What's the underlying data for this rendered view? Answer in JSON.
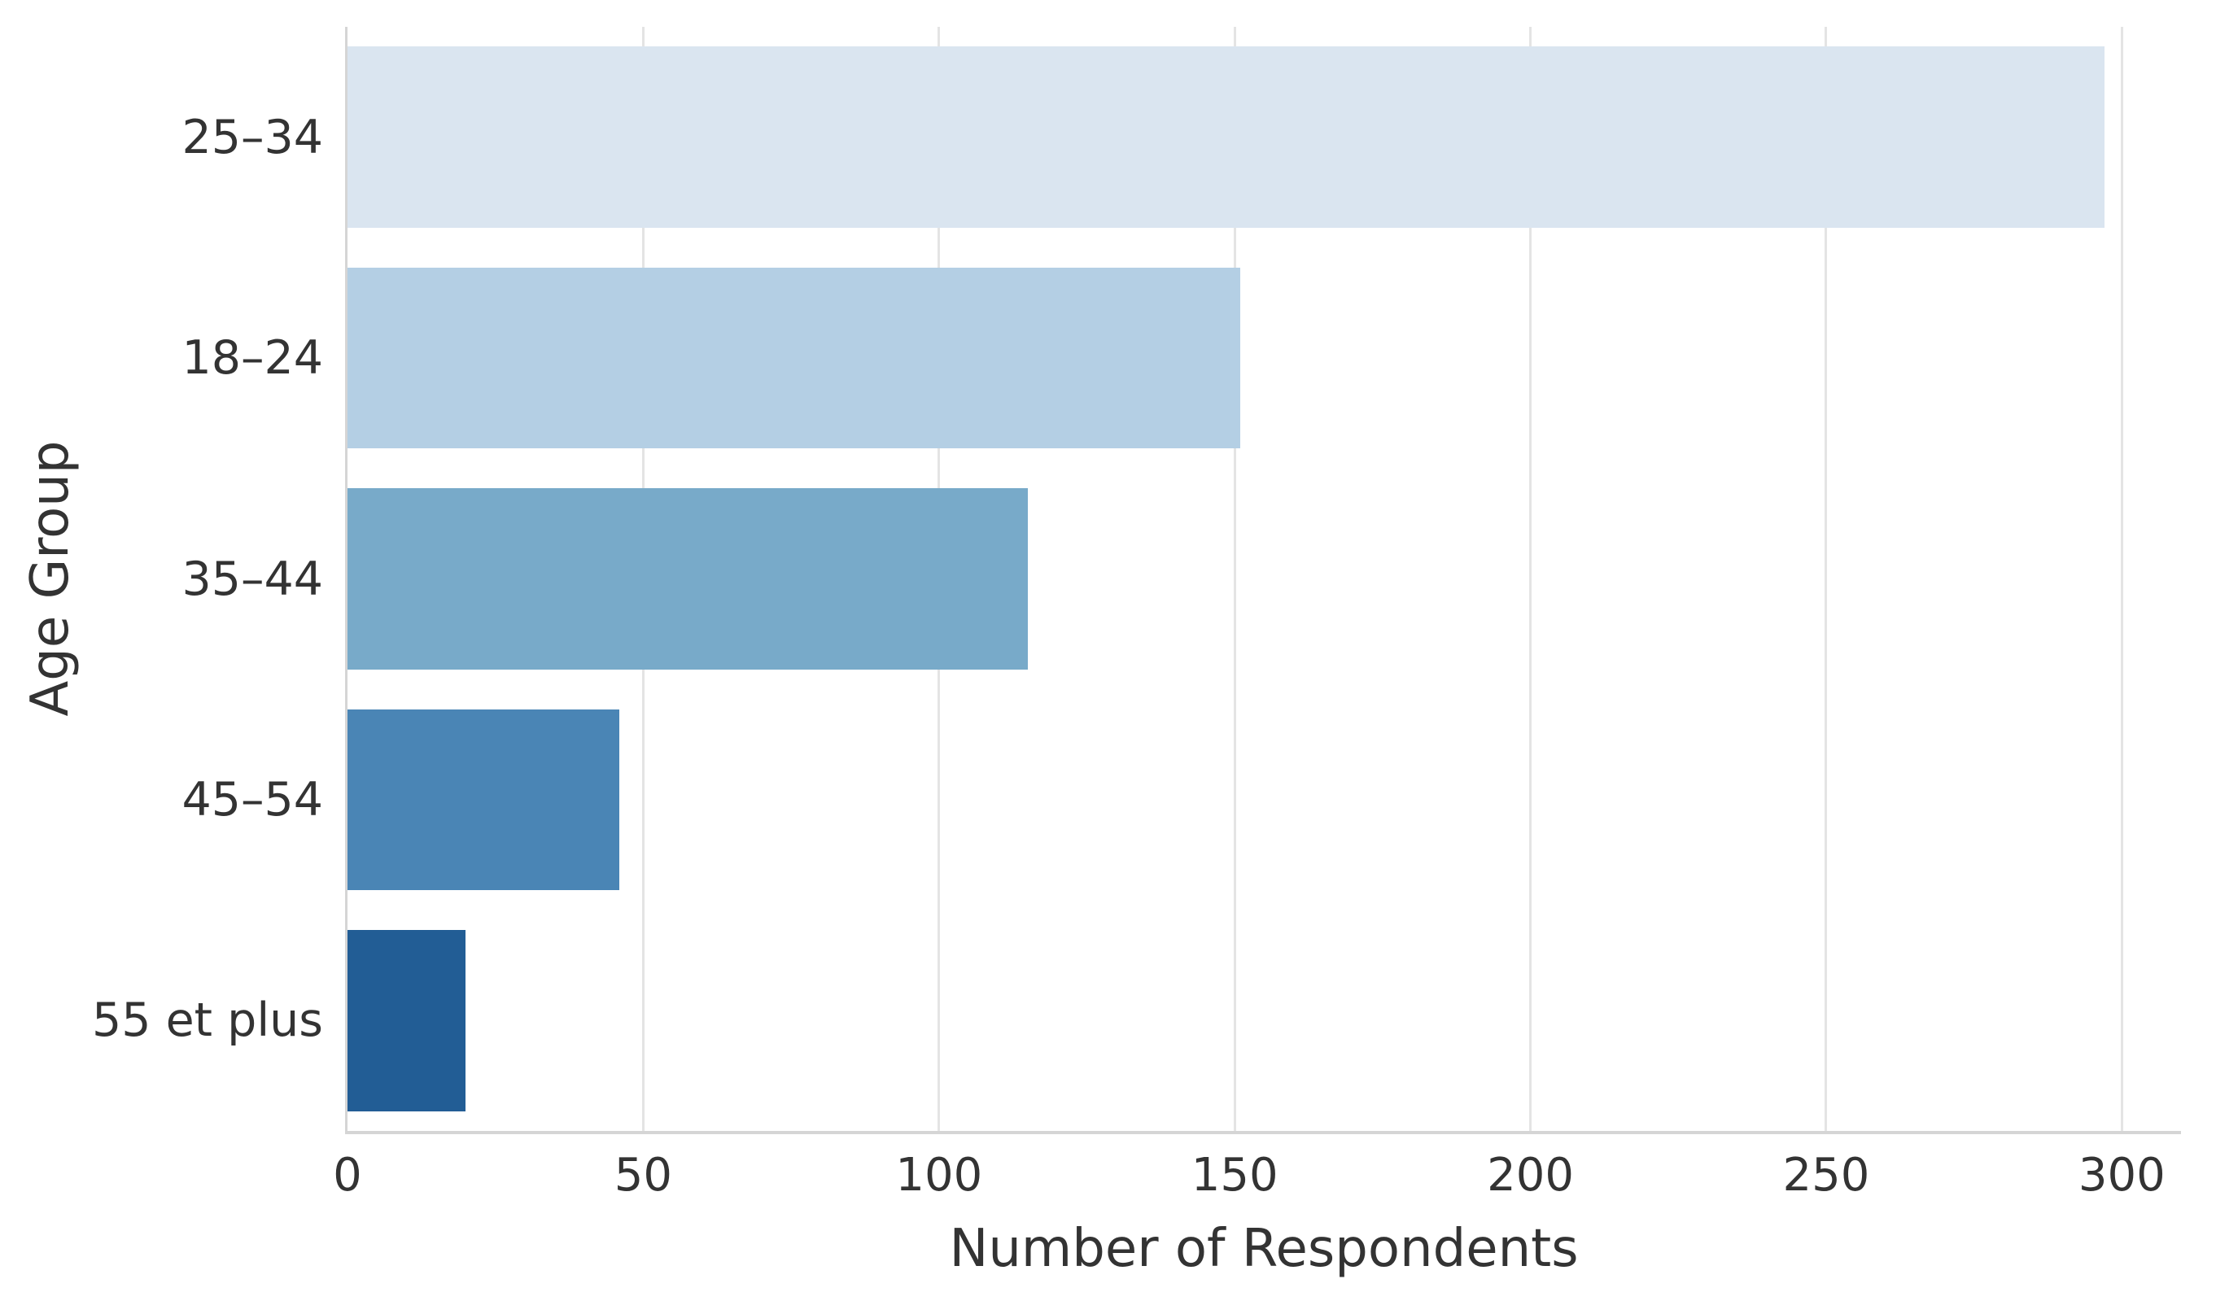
{
  "chart_data": {
    "type": "bar",
    "orientation": "horizontal",
    "title": "",
    "xlabel": "Number of Respondents",
    "ylabel": "Age Group",
    "categories": [
      "25–34",
      "18–24",
      "35–44",
      "45–54",
      "55 et plus"
    ],
    "values": [
      297,
      151,
      115,
      46,
      20
    ],
    "bar_colors": [
      "#dae5f0",
      "#b4cfe4",
      "#78aac9",
      "#4a85b5",
      "#225d95"
    ],
    "xticks": [
      0,
      50,
      100,
      150,
      200,
      250,
      300
    ],
    "xlim": [
      0,
      310
    ],
    "bar_width_fraction": 0.82,
    "grid": "vertical-only",
    "legend": "none",
    "grid_color": "#e4e4e4",
    "spine_color": "#d5d5d5",
    "text_color": "#333333",
    "background_color": "#ffffff"
  }
}
